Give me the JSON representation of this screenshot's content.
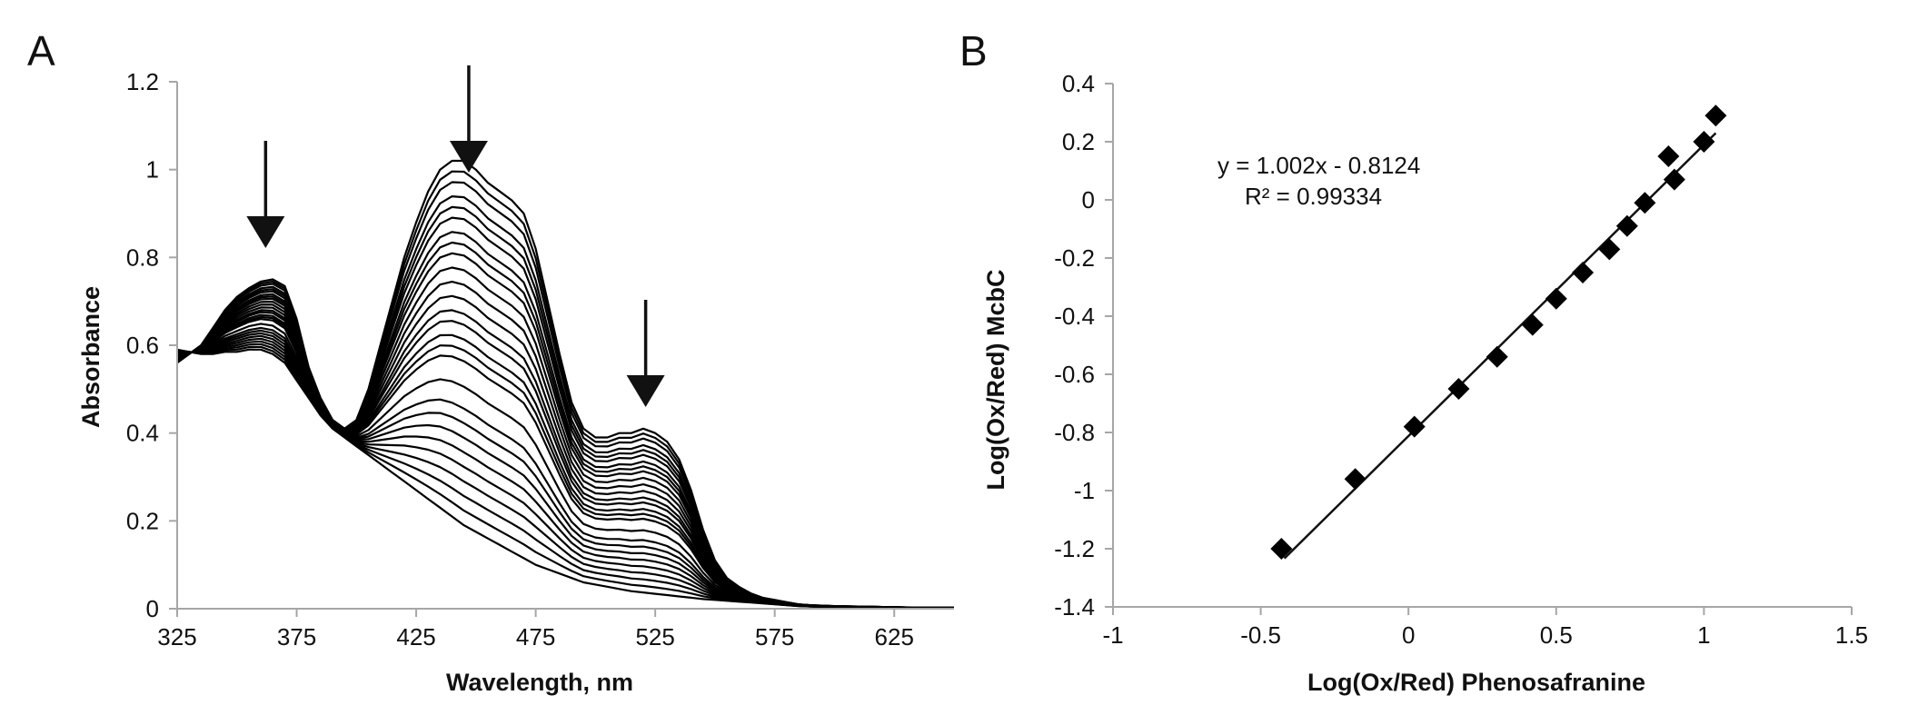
{
  "chart_data": [
    {
      "panel": "A",
      "type": "line",
      "xlabel": "Wavelength, nm",
      "ylabel": "Absorbance",
      "xlim": [
        325,
        650
      ],
      "ylim": [
        0,
        1.2
      ],
      "xticks": [
        "325",
        "375",
        "425",
        "475",
        "525",
        "575",
        "625"
      ],
      "yticks": [
        "0",
        "0.2",
        "0.4",
        "0.6",
        "0.8",
        "1",
        "1.2"
      ],
      "grid": false,
      "legend": "none",
      "line_color": "#000000",
      "arrow_wavelengths": [
        362,
        447,
        521
      ],
      "arrow_directions": [
        "down",
        "down",
        "down"
      ],
      "oxidized_spectrum": {
        "x": [
          325,
          330,
          335,
          340,
          345,
          350,
          355,
          360,
          365,
          370,
          375,
          380,
          385,
          390,
          395,
          400,
          405,
          410,
          415,
          420,
          425,
          430,
          435,
          440,
          445,
          450,
          455,
          460,
          465,
          470,
          475,
          480,
          485,
          490,
          495,
          500,
          505,
          510,
          515,
          520,
          525,
          530,
          535,
          540,
          545,
          550,
          555,
          560,
          565,
          570,
          575,
          580,
          585,
          590,
          600,
          610,
          620,
          630,
          640,
          650
        ],
        "y": [
          0.56,
          0.58,
          0.6,
          0.64,
          0.68,
          0.71,
          0.73,
          0.745,
          0.75,
          0.735,
          0.66,
          0.55,
          0.48,
          0.43,
          0.41,
          0.43,
          0.5,
          0.6,
          0.7,
          0.8,
          0.88,
          0.95,
          1.0,
          1.02,
          1.02,
          1.0,
          0.97,
          0.95,
          0.93,
          0.9,
          0.82,
          0.7,
          0.58,
          0.47,
          0.41,
          0.39,
          0.39,
          0.4,
          0.4,
          0.41,
          0.4,
          0.38,
          0.34,
          0.27,
          0.18,
          0.11,
          0.07,
          0.05,
          0.035,
          0.025,
          0.02,
          0.015,
          0.01,
          0.008,
          0.006,
          0.005,
          0.004,
          0.003,
          0.002,
          0.002
        ]
      },
      "reduced_spectrum": {
        "x": [
          325,
          330,
          335,
          340,
          345,
          350,
          355,
          360,
          365,
          370,
          375,
          380,
          385,
          390,
          395,
          400,
          405,
          410,
          415,
          420,
          425,
          430,
          435,
          440,
          445,
          450,
          455,
          460,
          465,
          470,
          475,
          480,
          485,
          490,
          495,
          500,
          505,
          510,
          515,
          520,
          525,
          530,
          535,
          540,
          545,
          550,
          555,
          560,
          565,
          570,
          575,
          580,
          585,
          590,
          600,
          610,
          620,
          630,
          640,
          650
        ],
        "y": [
          0.59,
          0.585,
          0.58,
          0.58,
          0.585,
          0.585,
          0.59,
          0.59,
          0.58,
          0.56,
          0.52,
          0.48,
          0.44,
          0.41,
          0.39,
          0.37,
          0.35,
          0.33,
          0.31,
          0.29,
          0.27,
          0.25,
          0.23,
          0.21,
          0.19,
          0.175,
          0.16,
          0.145,
          0.13,
          0.115,
          0.1,
          0.09,
          0.08,
          0.07,
          0.06,
          0.055,
          0.05,
          0.045,
          0.04,
          0.037,
          0.034,
          0.031,
          0.028,
          0.025,
          0.022,
          0.02,
          0.018,
          0.016,
          0.014,
          0.012,
          0.01,
          0.008,
          0.006,
          0.005,
          0.004,
          0.003,
          0.003,
          0.002,
          0.002,
          0.002
        ]
      },
      "series_fractions": [
        1.0,
        0.97,
        0.94,
        0.9,
        0.87,
        0.84,
        0.8,
        0.77,
        0.74,
        0.7,
        0.66,
        0.62,
        0.58,
        0.55,
        0.51,
        0.48,
        0.45,
        0.38,
        0.32,
        0.28,
        0.24,
        0.2,
        0.16,
        0.12,
        0.08,
        0.04,
        0.0
      ]
    },
    {
      "panel": "B",
      "type": "scatter",
      "xlabel": "Log(Ox/Red) Phenosafranine",
      "ylabel": "Log(Ox/Red) McbC",
      "xlim": [
        -1,
        1.5
      ],
      "ylim": [
        -1.4,
        0.4
      ],
      "xticks": [
        "-1",
        "-0.5",
        "0",
        "0.5",
        "1",
        "1.5"
      ],
      "yticks": [
        "-1.4",
        "-1.2",
        "-1",
        "-0.8",
        "-0.6",
        "-0.4",
        "-0.2",
        "0",
        "0.2",
        "0.4"
      ],
      "grid": false,
      "legend": "none",
      "marker": "diamond",
      "marker_color": "#000000",
      "trendline": {
        "slope": 1.002,
        "intercept": -0.8124,
        "x_range": [
          -0.42,
          1.04
        ]
      },
      "equation": "y = 1.002x - 0.8124",
      "r_squared": "R² = 0.99334",
      "x": [
        -0.43,
        -0.18,
        0.02,
        0.17,
        0.3,
        0.42,
        0.5,
        0.59,
        0.68,
        0.74,
        0.8,
        0.88,
        0.9,
        1.0,
        1.04
      ],
      "y": [
        -1.2,
        -0.96,
        -0.78,
        -0.65,
        -0.54,
        -0.43,
        -0.34,
        -0.25,
        -0.17,
        -0.09,
        -0.01,
        0.15,
        0.07,
        0.2,
        0.29
      ]
    }
  ]
}
